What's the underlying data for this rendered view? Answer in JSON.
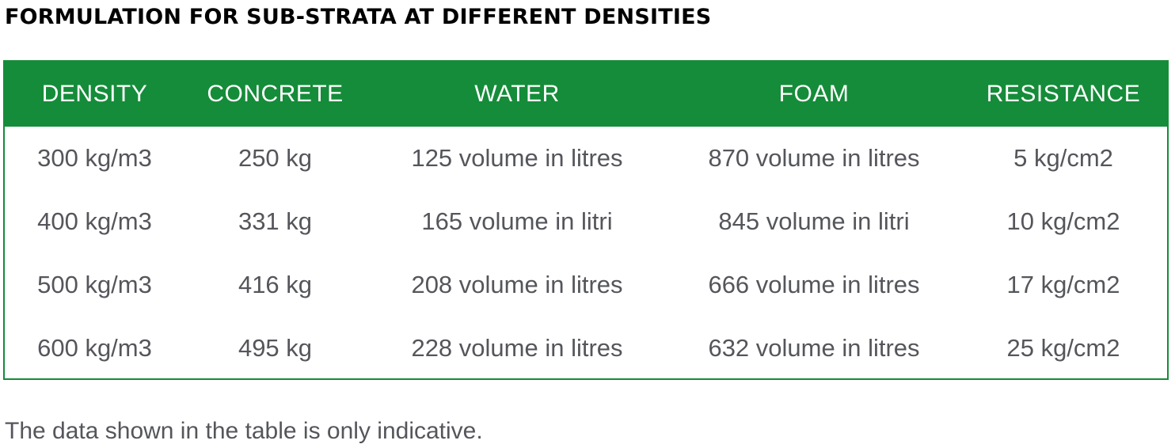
{
  "title": "FORMULATION FOR SUB-STRATA AT DIFFERENT DENSITIES",
  "colors": {
    "header_bg": "#158c39",
    "header_text": "#ffffff",
    "cell_text": "#55565b",
    "title_text": "#000000"
  },
  "table": {
    "headers": [
      "DENSITY",
      "CONCRETE",
      "WATER",
      "FOAM",
      "RESISTANCE"
    ],
    "rows": [
      [
        "300 kg/m3",
        "250 kg",
        "125 volume in litres",
        "870 volume in litres",
        "5 kg/cm2"
      ],
      [
        "400 kg/m3",
        "331 kg",
        "165 volume in litri",
        "845 volume in litri",
        "10 kg/cm2"
      ],
      [
        "500 kg/m3",
        "416 kg",
        "208 volume in litres",
        "666 volume in litres",
        "17 kg/cm2"
      ],
      [
        "600 kg/m3",
        "495 kg",
        "228 volume in litres",
        "632 volume in litres",
        "25 kg/cm2"
      ]
    ]
  },
  "note": "The data shown in the table is only indicative."
}
